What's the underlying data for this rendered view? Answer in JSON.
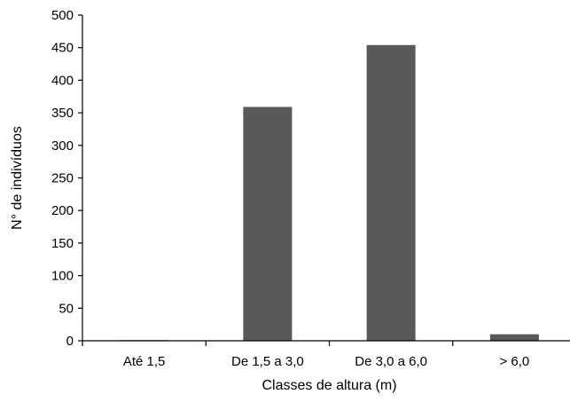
{
  "chart_data": {
    "type": "bar",
    "title": "",
    "xlabel": "Classes de altura (m)",
    "ylabel": "N° de indivíduos",
    "categories": [
      "Até 1,5",
      "De 1,5 a 3,0",
      "De 3,0 a 6,0",
      "> 6,0"
    ],
    "values": [
      1,
      359,
      454,
      10
    ],
    "ylim": [
      0,
      500
    ],
    "yticks": [
      0,
      50,
      100,
      150,
      200,
      250,
      300,
      350,
      400,
      450,
      500
    ],
    "grid": false,
    "legend": "none",
    "bar_color": "#595959"
  }
}
